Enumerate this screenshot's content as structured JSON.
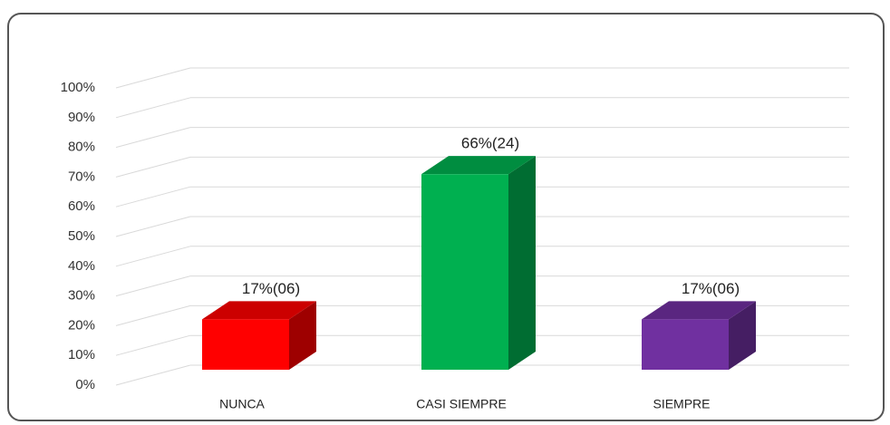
{
  "chart_data": {
    "type": "bar3d",
    "categories": [
      "NUNCA",
      "CASI SIEMPRE",
      "SIEMPRE"
    ],
    "values": [
      17,
      66,
      17
    ],
    "value_labels": [
      "17%(06)",
      "66%(24)",
      "17%(06)"
    ],
    "colors": [
      "#ff0000",
      "#00b050",
      "#7030a0"
    ],
    "ylim": [
      0,
      100
    ],
    "yticks": [
      {
        "value": 0,
        "label": "0%"
      },
      {
        "value": 10,
        "label": "10%"
      },
      {
        "value": 20,
        "label": "20%"
      },
      {
        "value": 30,
        "label": "30%"
      },
      {
        "value": 40,
        "label": "40%"
      },
      {
        "value": 50,
        "label": "50%"
      },
      {
        "value": 60,
        "label": "60%"
      },
      {
        "value": 70,
        "label": "70%"
      },
      {
        "value": 80,
        "label": "80%"
      },
      {
        "value": 90,
        "label": "90%"
      },
      {
        "value": 100,
        "label": "100%"
      }
    ],
    "grid": true
  }
}
